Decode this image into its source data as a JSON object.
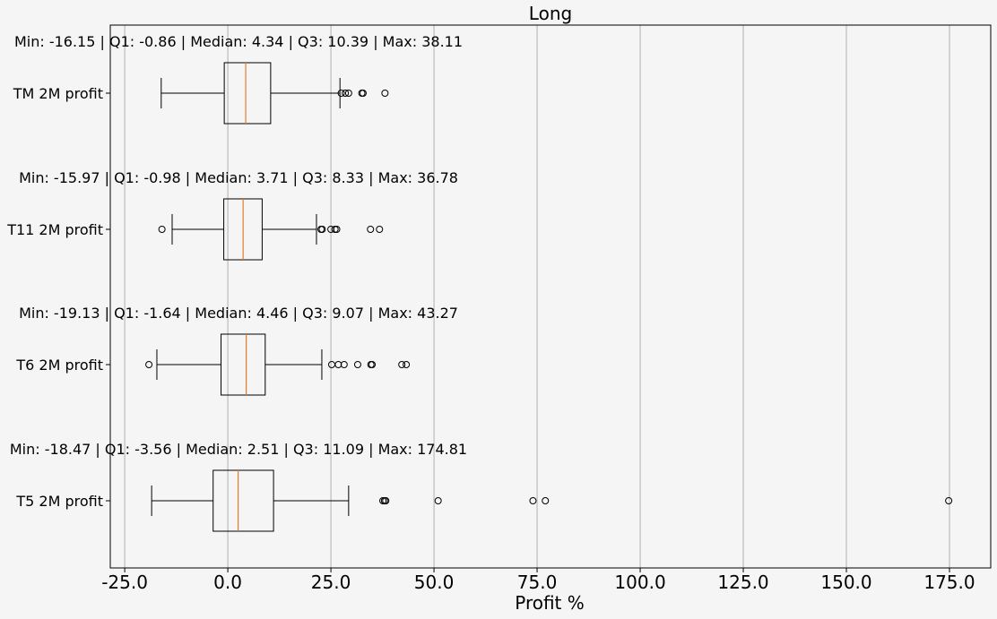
{
  "chart_data": {
    "type": "boxplot",
    "orientation": "horizontal",
    "title": "Long",
    "xlabel": "Profit %",
    "ylabel": "",
    "xlim": [
      -28.5,
      185
    ],
    "xticks": [
      -25.0,
      0.0,
      25.0,
      50.0,
      75.0,
      100.0,
      125.0,
      150.0,
      175.0
    ],
    "xtick_labels": [
      "-25.0",
      "0.0",
      "25.0",
      "50.0",
      "75.0",
      "100.0",
      "125.0",
      "150.0",
      "175.0"
    ],
    "grid": "x",
    "colors": {
      "median": "#e07b2a",
      "box": "#000000",
      "grid": "#b0b0b0",
      "background": "#f5f5f5"
    },
    "series": [
      {
        "name": "TM 2M profit",
        "stats_text": "Min: -16.15 | Q1: -0.86 | Median: 4.34 | Q3: 10.39 | Max: 38.11",
        "whisker_low": -16.15,
        "q1": -0.86,
        "median": 4.34,
        "q3": 10.39,
        "whisker_high": 27.2,
        "outliers": [
          27.5,
          28.5,
          29.3,
          32.5,
          32.8,
          38.11
        ]
      },
      {
        "name": "T11 2M profit",
        "stats_text": "Min: -15.97 | Q1: -0.98 | Median: 3.71 | Q3: 8.33 | Max: 36.78",
        "whisker_low": -13.5,
        "q1": -0.98,
        "median": 3.71,
        "q3": 8.33,
        "whisker_high": 21.5,
        "outliers": [
          -15.97,
          22.6,
          22.9,
          25.0,
          26.0,
          26.4,
          34.6,
          36.78
        ]
      },
      {
        "name": "T6 2M profit",
        "stats_text": "Min: -19.13 | Q1: -1.64 | Median: 4.46 | Q3: 9.07 | Max: 43.27",
        "whisker_low": -17.2,
        "q1": -1.64,
        "median": 4.46,
        "q3": 9.07,
        "whisker_high": 22.8,
        "outliers": [
          -19.13,
          25.2,
          26.8,
          28.2,
          31.5,
          34.7,
          35.0,
          42.2,
          43.27
        ]
      },
      {
        "name": "T5 2M profit",
        "stats_text": "Min: -18.47 | Q1: -3.56 | Median: 2.51 | Q3: 11.09 | Max: 174.81",
        "whisker_low": -18.47,
        "q1": -3.56,
        "median": 2.51,
        "q3": 11.09,
        "whisker_high": 29.3,
        "outliers": [
          37.6,
          38.0,
          38.3,
          51.0,
          74.0,
          77.0,
          174.81
        ]
      }
    ]
  }
}
